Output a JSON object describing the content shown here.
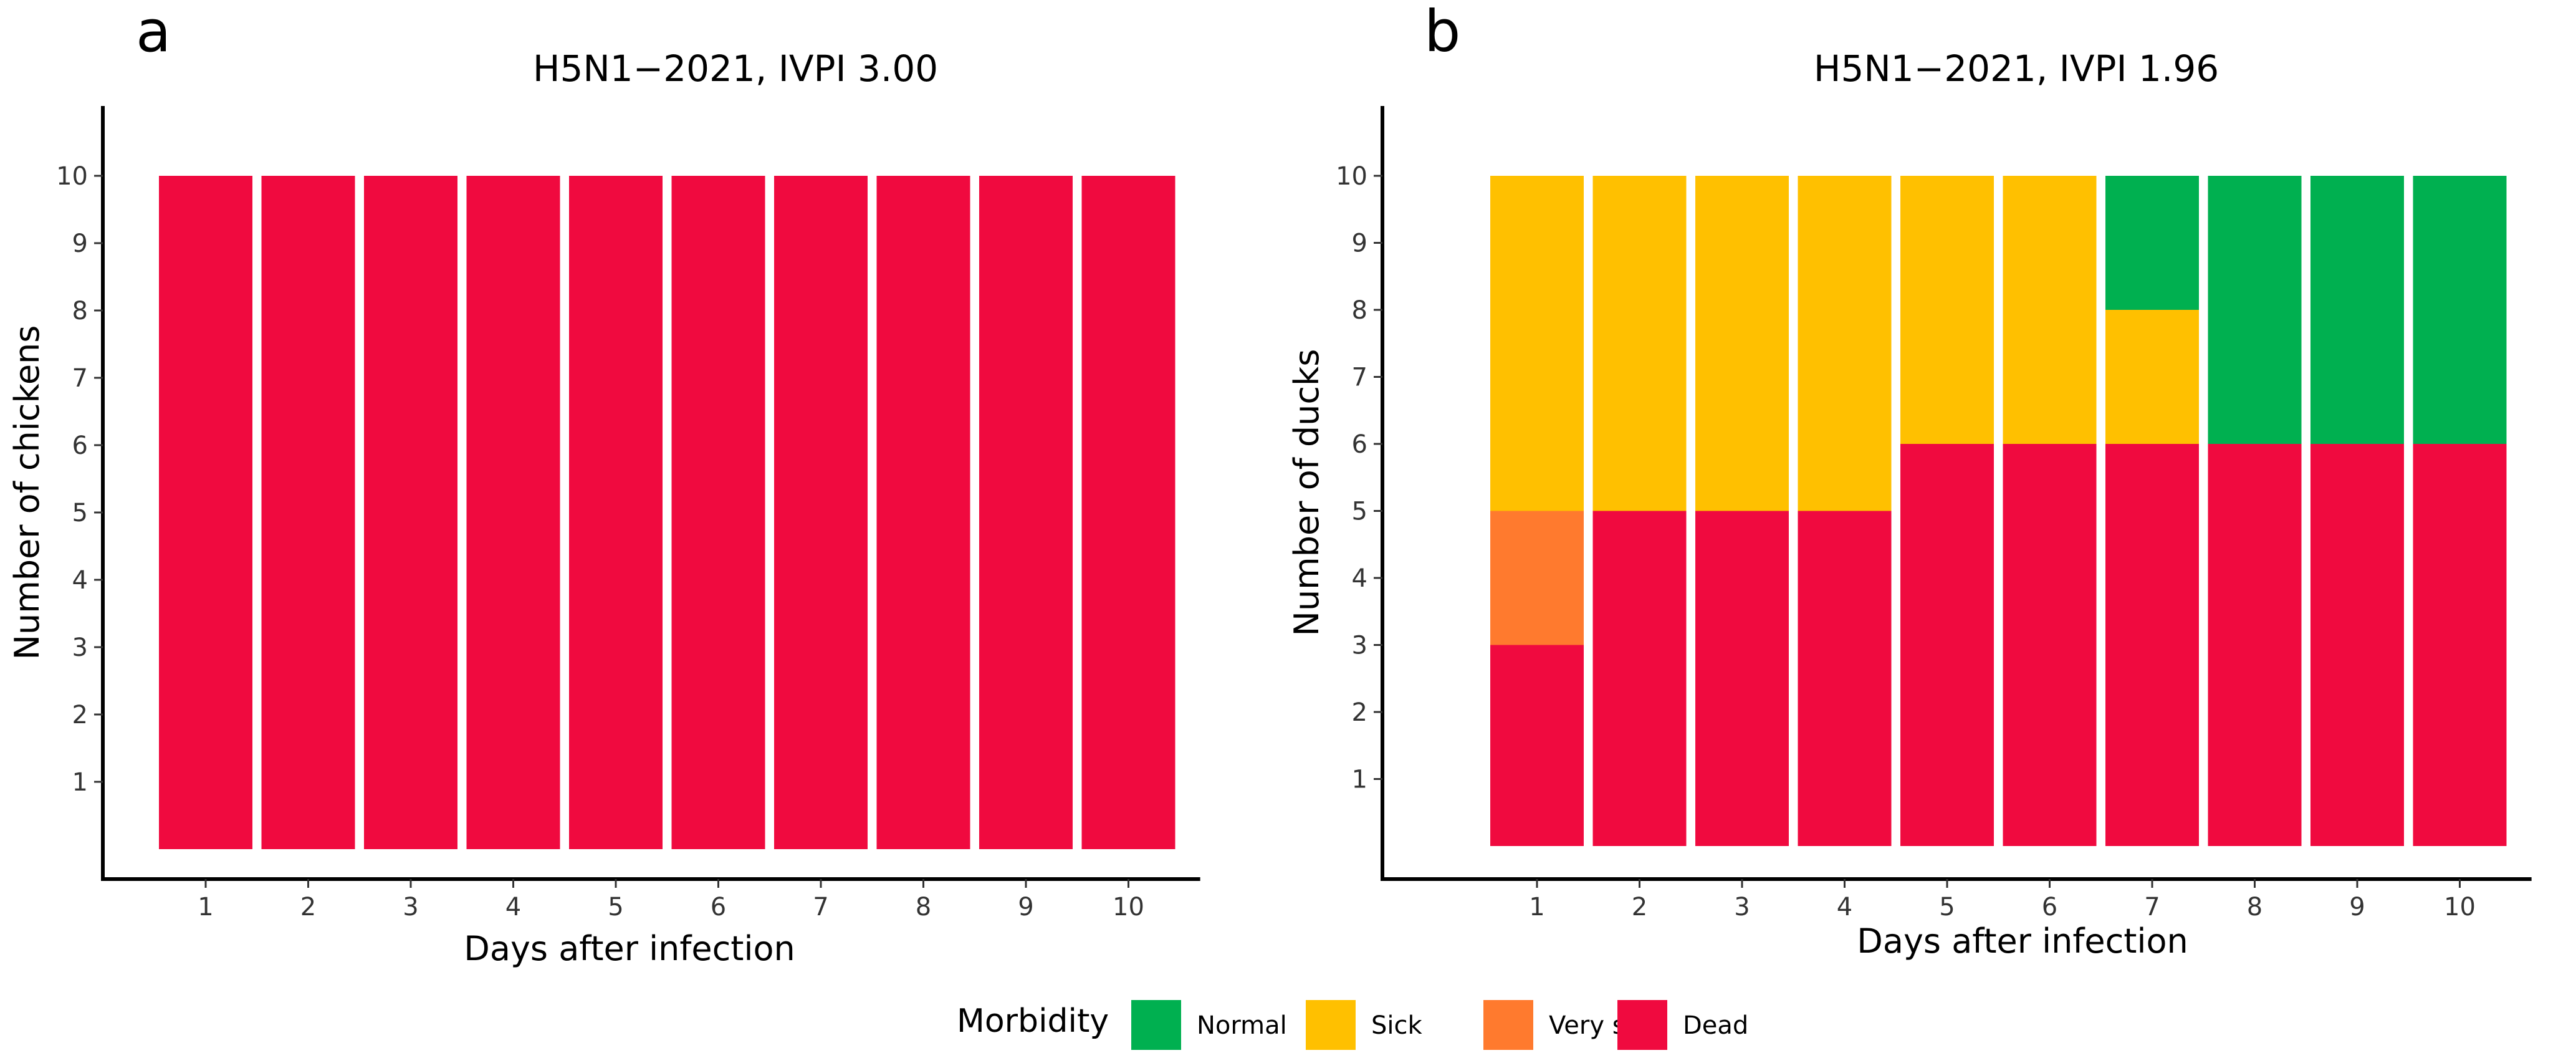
{
  "chart_data": [
    {
      "type": "bar",
      "stacked": true,
      "panel_label": "a",
      "title": "H5N1−2021, IVPI 3.00",
      "xlabel": "Days after infection",
      "ylabel": "Number of chickens",
      "categories": [
        "1",
        "2",
        "3",
        "4",
        "5",
        "6",
        "7",
        "8",
        "9",
        "10"
      ],
      "yticks": [
        1,
        2,
        3,
        4,
        5,
        6,
        7,
        8,
        9,
        10
      ],
      "ylim": [
        0,
        10
      ],
      "series": [
        {
          "name": "Dead",
          "values": [
            10,
            10,
            10,
            10,
            10,
            10,
            10,
            10,
            10,
            10
          ]
        },
        {
          "name": "Very sick",
          "values": [
            0,
            0,
            0,
            0,
            0,
            0,
            0,
            0,
            0,
            0
          ]
        },
        {
          "name": "Sick",
          "values": [
            0,
            0,
            0,
            0,
            0,
            0,
            0,
            0,
            0,
            0
          ]
        },
        {
          "name": "Normal",
          "values": [
            0,
            0,
            0,
            0,
            0,
            0,
            0,
            0,
            0,
            0
          ]
        }
      ]
    },
    {
      "type": "bar",
      "stacked": true,
      "panel_label": "b",
      "title": "H5N1−2021, IVPI 1.96",
      "xlabel": "Days after infection",
      "ylabel": "Number of ducks",
      "categories": [
        "1",
        "2",
        "3",
        "4",
        "5",
        "6",
        "7",
        "8",
        "9",
        "10"
      ],
      "yticks": [
        1,
        2,
        3,
        4,
        5,
        6,
        7,
        8,
        9,
        10
      ],
      "ylim": [
        0,
        10
      ],
      "series": [
        {
          "name": "Dead",
          "values": [
            3,
            5,
            5,
            5,
            6,
            6,
            6,
            6,
            6,
            6
          ]
        },
        {
          "name": "Very sick",
          "values": [
            2,
            0,
            0,
            0,
            0,
            0,
            0,
            0,
            0,
            0
          ]
        },
        {
          "name": "Sick",
          "values": [
            5,
            5,
            5,
            5,
            4,
            4,
            2,
            0,
            0,
            0
          ]
        },
        {
          "name": "Normal",
          "values": [
            0,
            0,
            0,
            0,
            0,
            0,
            2,
            4,
            4,
            4
          ]
        }
      ]
    }
  ],
  "legend": {
    "title": "Morbidity",
    "position": "bottom",
    "items": [
      {
        "name": "Normal",
        "color": "#00b050"
      },
      {
        "name": "Sick",
        "color": "#ffc000"
      },
      {
        "name": "Very sick",
        "color": "#ff7a2e"
      },
      {
        "name": "Dead",
        "color": "#f00a3f"
      }
    ]
  }
}
